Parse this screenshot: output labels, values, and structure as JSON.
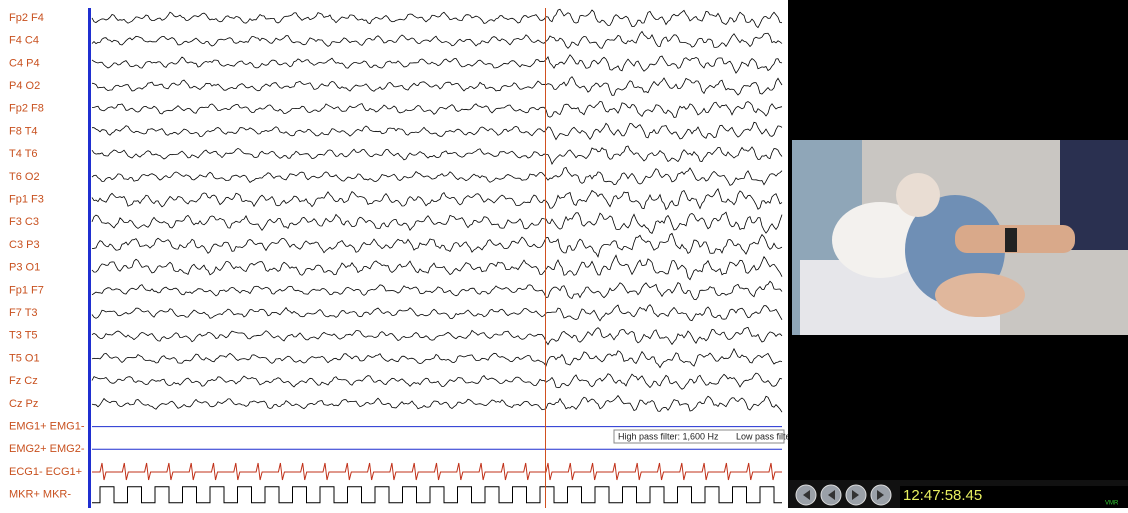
{
  "channels": [
    "Fp2 F4",
    "F4 C4",
    "C4 P4",
    "P4 O2",
    "Fp2 F8",
    "F8 T4",
    "T4 T6",
    "T6 O2",
    "Fp1 F3",
    "F3 C3",
    "C3 P3",
    "P3 O1",
    "Fp1 F7",
    "F7 T3",
    "T3 T5",
    "T5 O1",
    "Fz Cz",
    "Cz Pz",
    "EMG1+ EMG1-",
    "EMG2+ EMG2-",
    "ECG1- ECG1+",
    "MKR+ MKR-"
  ],
  "filter": {
    "high_pass": "High pass filter: 1,600 Hz",
    "low_pass": "Low pass filter:"
  },
  "player": {
    "time": "12:47:58.45",
    "logo": "VMR"
  }
}
